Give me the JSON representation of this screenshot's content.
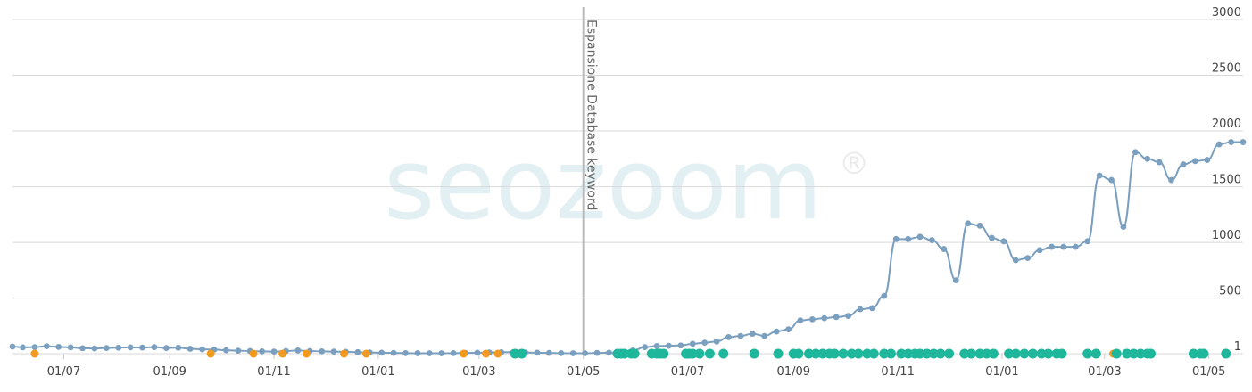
{
  "watermark": {
    "brand": "seozoom",
    "registered_mark": "®",
    "colors": {
      "text_light": "#dfeef2",
      "text_gray": "#e8e8e8",
      "accent": "#cfeef0"
    }
  },
  "colors": {
    "line": "#7b9fbf",
    "point": "#7b9fbf",
    "event_green": "#1fb79c",
    "event_orange": "#f39a1e",
    "gridline": "#d9d9d9",
    "annotation_line": "#bbbbbb"
  },
  "chart_data": {
    "type": "line",
    "title": "",
    "xlabel": "",
    "ylabel": "",
    "ylim": [
      1,
      3000
    ],
    "y_ticks": [
      {
        "value": 1,
        "label": "1"
      },
      {
        "value": 500,
        "label": "500"
      },
      {
        "value": 1000,
        "label": "1000"
      },
      {
        "value": 1500,
        "label": "1500"
      },
      {
        "value": 2000,
        "label": "2000"
      },
      {
        "value": 2500,
        "label": "2500"
      },
      {
        "value": 3000,
        "label": "3000"
      }
    ],
    "x_range": [
      "2022-06-01",
      "2024-05-21"
    ],
    "x_ticks": [
      {
        "date": "2022-07-01",
        "label": "01/07"
      },
      {
        "date": "2022-09-01",
        "label": "01/09"
      },
      {
        "date": "2022-11-01",
        "label": "01/11"
      },
      {
        "date": "2023-01-01",
        "label": "01/01"
      },
      {
        "date": "2023-03-01",
        "label": "01/03"
      },
      {
        "date": "2023-05-01",
        "label": "01/05"
      },
      {
        "date": "2023-07-01",
        "label": "01/07"
      },
      {
        "date": "2023-09-01",
        "label": "01/09"
      },
      {
        "date": "2023-11-01",
        "label": "01/11"
      },
      {
        "date": "2024-01-01",
        "label": "01/01"
      },
      {
        "date": "2024-03-01",
        "label": "01/03"
      },
      {
        "date": "2024-05-01",
        "label": "01/05"
      }
    ],
    "grid": true,
    "y_axis_position": "right",
    "legend": "none",
    "annotations": [
      {
        "date": "2023-05-01",
        "label": "Espansione Database keyword"
      }
    ],
    "series": [
      {
        "points": [
          [
            "2022-06-01",
            65
          ],
          [
            "2022-06-07",
            58
          ],
          [
            "2022-06-14",
            60
          ],
          [
            "2022-06-21",
            68
          ],
          [
            "2022-06-28",
            62
          ],
          [
            "2022-07-05",
            58
          ],
          [
            "2022-07-12",
            50
          ],
          [
            "2022-07-19",
            48
          ],
          [
            "2022-07-26",
            52
          ],
          [
            "2022-08-02",
            55
          ],
          [
            "2022-08-09",
            58
          ],
          [
            "2022-08-16",
            56
          ],
          [
            "2022-08-23",
            60
          ],
          [
            "2022-08-30",
            52
          ],
          [
            "2022-09-06",
            55
          ],
          [
            "2022-09-13",
            45
          ],
          [
            "2022-09-20",
            40
          ],
          [
            "2022-09-27",
            38
          ],
          [
            "2022-10-04",
            32
          ],
          [
            "2022-10-11",
            28
          ],
          [
            "2022-10-18",
            25
          ],
          [
            "2022-10-25",
            22
          ],
          [
            "2022-11-01",
            20
          ],
          [
            "2022-11-08",
            25
          ],
          [
            "2022-11-15",
            30
          ],
          [
            "2022-11-22",
            25
          ],
          [
            "2022-11-29",
            22
          ],
          [
            "2022-12-06",
            20
          ],
          [
            "2022-12-13",
            18
          ],
          [
            "2022-12-20",
            15
          ],
          [
            "2022-12-27",
            12
          ],
          [
            "2023-01-03",
            10
          ],
          [
            "2023-01-10",
            8
          ],
          [
            "2023-01-17",
            6
          ],
          [
            "2023-01-24",
            5
          ],
          [
            "2023-01-31",
            5
          ],
          [
            "2023-02-07",
            5
          ],
          [
            "2023-02-14",
            6
          ],
          [
            "2023-02-21",
            8
          ],
          [
            "2023-02-28",
            10
          ],
          [
            "2023-03-07",
            12
          ],
          [
            "2023-03-14",
            14
          ],
          [
            "2023-03-21",
            15
          ],
          [
            "2023-03-28",
            12
          ],
          [
            "2023-04-04",
            10
          ],
          [
            "2023-04-11",
            8
          ],
          [
            "2023-04-18",
            6
          ],
          [
            "2023-04-25",
            5
          ],
          [
            "2023-05-02",
            5
          ],
          [
            "2023-05-09",
            8
          ],
          [
            "2023-05-16",
            10
          ],
          [
            "2023-05-23",
            15
          ],
          [
            "2023-05-30",
            30
          ],
          [
            "2023-06-06",
            60
          ],
          [
            "2023-06-13",
            70
          ],
          [
            "2023-06-20",
            72
          ],
          [
            "2023-06-27",
            75
          ],
          [
            "2023-07-04",
            90
          ],
          [
            "2023-07-11",
            100
          ],
          [
            "2023-07-18",
            110
          ],
          [
            "2023-07-25",
            150
          ],
          [
            "2023-08-01",
            160
          ],
          [
            "2023-08-08",
            180
          ],
          [
            "2023-08-15",
            160
          ],
          [
            "2023-08-22",
            200
          ],
          [
            "2023-08-29",
            220
          ],
          [
            "2023-09-05",
            300
          ],
          [
            "2023-09-12",
            310
          ],
          [
            "2023-09-19",
            320
          ],
          [
            "2023-09-26",
            330
          ],
          [
            "2023-10-03",
            340
          ],
          [
            "2023-10-10",
            400
          ],
          [
            "2023-10-17",
            410
          ],
          [
            "2023-10-24",
            520
          ],
          [
            "2023-10-31",
            1030
          ],
          [
            "2023-11-07",
            1030
          ],
          [
            "2023-11-14",
            1050
          ],
          [
            "2023-11-21",
            1020
          ],
          [
            "2023-11-28",
            940
          ],
          [
            "2023-12-05",
            660
          ],
          [
            "2023-12-12",
            1170
          ],
          [
            "2023-12-19",
            1150
          ],
          [
            "2023-12-26",
            1040
          ],
          [
            "2024-01-02",
            1010
          ],
          [
            "2024-01-09",
            840
          ],
          [
            "2024-01-16",
            860
          ],
          [
            "2024-01-23",
            930
          ],
          [
            "2024-01-30",
            960
          ],
          [
            "2024-02-06",
            960
          ],
          [
            "2024-02-13",
            960
          ],
          [
            "2024-02-20",
            1010
          ],
          [
            "2024-02-27",
            1600
          ],
          [
            "2024-03-05",
            1560
          ],
          [
            "2024-03-12",
            1140
          ],
          [
            "2024-03-19",
            1810
          ],
          [
            "2024-03-26",
            1750
          ],
          [
            "2024-04-02",
            1720
          ],
          [
            "2024-04-09",
            1560
          ],
          [
            "2024-04-16",
            1700
          ],
          [
            "2024-04-23",
            1730
          ],
          [
            "2024-04-30",
            1740
          ],
          [
            "2024-05-07",
            1880
          ],
          [
            "2024-05-14",
            1900
          ],
          [
            "2024-05-21",
            1900
          ]
        ]
      }
    ],
    "events_orange": [
      "2022-06-14",
      "2022-09-25",
      "2022-10-20",
      "2022-11-06",
      "2022-11-20",
      "2022-12-12",
      "2022-12-25",
      "2023-02-20",
      "2023-03-05",
      "2023-03-12",
      "2023-03-24",
      "2024-03-06"
    ],
    "events_green": [
      "2023-03-22",
      "2023-03-26",
      "2023-05-21",
      "2023-05-23",
      "2023-05-25",
      "2023-05-29",
      "2023-05-31",
      "2023-06-10",
      "2023-06-13",
      "2023-06-15",
      "2023-06-17",
      "2023-06-30",
      "2023-07-02",
      "2023-07-04",
      "2023-07-08",
      "2023-07-14",
      "2023-07-22",
      "2023-08-09",
      "2023-08-23",
      "2023-09-01",
      "2023-09-04",
      "2023-09-10",
      "2023-09-14",
      "2023-09-18",
      "2023-09-22",
      "2023-09-25",
      "2023-09-30",
      "2023-10-05",
      "2023-10-09",
      "2023-10-14",
      "2023-10-18",
      "2023-10-24",
      "2023-10-28",
      "2023-11-03",
      "2023-11-07",
      "2023-11-11",
      "2023-11-14",
      "2023-11-18",
      "2023-11-22",
      "2023-11-26",
      "2023-12-01",
      "2023-12-10",
      "2023-12-14",
      "2023-12-19",
      "2023-12-23",
      "2023-12-27",
      "2024-01-05",
      "2024-01-09",
      "2024-01-14",
      "2024-01-19",
      "2024-01-24",
      "2024-01-28",
      "2024-02-02",
      "2024-02-05",
      "2024-02-20",
      "2024-02-25",
      "2024-03-08",
      "2024-03-14",
      "2024-03-18",
      "2024-03-22",
      "2024-03-26",
      "2024-03-28",
      "2024-04-22",
      "2024-04-26",
      "2024-04-28",
      "2024-05-11"
    ]
  }
}
